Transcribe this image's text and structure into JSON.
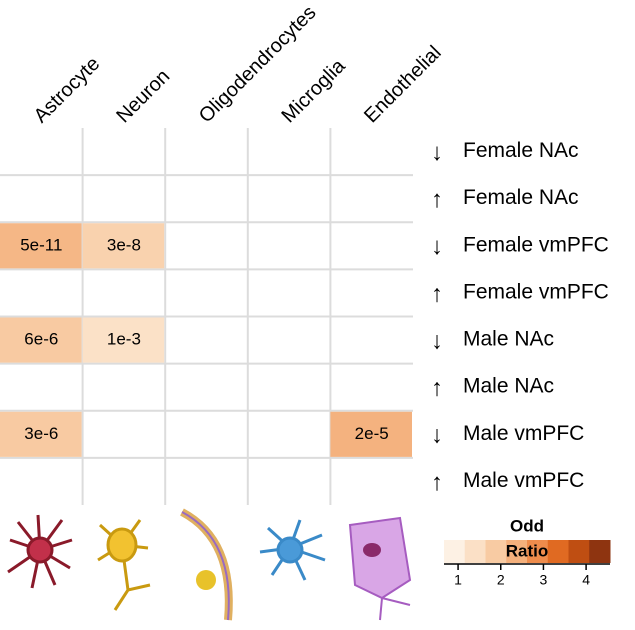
{
  "chart_data": {
    "type": "heatmap",
    "columns": [
      "Astrocyte",
      "Neuron",
      "Oligodendrocytes",
      "Microglia",
      "Endothelial"
    ],
    "row_arrows": [
      "↓",
      "↑",
      "↓",
      "↑",
      "↓",
      "↑",
      "↓",
      "↑"
    ],
    "categories": [
      "Female NAc",
      "Female NAc",
      "Female vmPFC",
      "Female vmPFC",
      "Male NAc",
      "Male NAc",
      "Male vmPFC",
      "Male vmPFC"
    ],
    "values": [
      [
        null,
        null,
        null,
        null,
        null
      ],
      [
        null,
        null,
        null,
        null,
        null
      ],
      [
        2.2,
        1.6,
        null,
        null,
        null
      ],
      [
        null,
        null,
        null,
        null,
        null
      ],
      [
        1.8,
        1.2,
        null,
        null,
        null
      ],
      [
        null,
        null,
        null,
        null,
        null
      ],
      [
        1.8,
        null,
        null,
        null,
        2.3
      ],
      [
        null,
        null,
        null,
        null,
        null
      ]
    ],
    "value_labels": [
      [
        null,
        null,
        null,
        null,
        null
      ],
      [
        null,
        null,
        null,
        null,
        null
      ],
      [
        "5e-11",
        "3e-8",
        null,
        null,
        null
      ],
      [
        null,
        null,
        null,
        null,
        null
      ],
      [
        "6e-6",
        "1e-3",
        null,
        null,
        null
      ],
      [
        null,
        null,
        null,
        null,
        null
      ],
      [
        "3e-6",
        null,
        null,
        null,
        "2e-5"
      ],
      [
        null,
        null,
        null,
        null,
        null
      ]
    ],
    "colorbar": {
      "title": "Odd",
      "subtitle": "Ratio",
      "lim": [
        0.67,
        4.56
      ],
      "ticks": [
        1,
        2,
        3,
        4
      ],
      "colors": [
        "#fdf1e4",
        "#fbe0c6",
        "#f8cba3",
        "#f4b07c",
        "#ee8c4c",
        "#e06a22",
        "#bf4e12",
        "#8e3410"
      ]
    }
  }
}
